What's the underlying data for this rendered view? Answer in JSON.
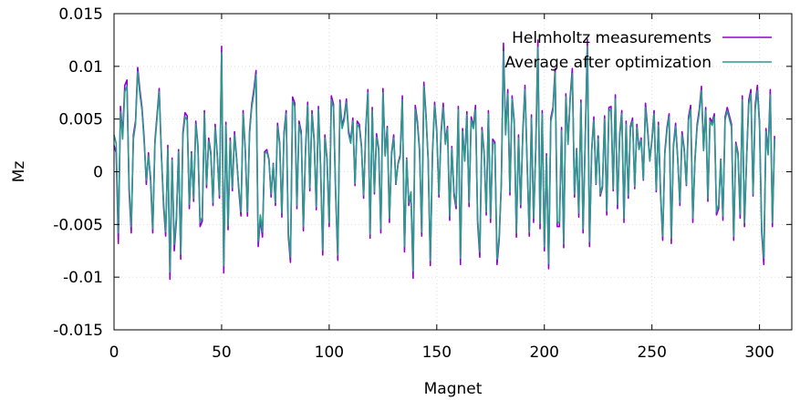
{
  "chart_data": {
    "type": "line",
    "title": "",
    "xlabel": "Magnet",
    "ylabel": "Mz",
    "xlim": [
      0,
      315
    ],
    "ylim": [
      -0.015,
      0.015
    ],
    "grid": true,
    "legend_position": "top-right",
    "x_ticks": [
      0,
      50,
      100,
      150,
      200,
      250,
      300
    ],
    "x_tick_labels": [
      "0",
      "50",
      "100",
      "150",
      "200",
      "250",
      "300"
    ],
    "y_ticks": [
      -0.015,
      -0.01,
      -0.005,
      0,
      0.005,
      0.01,
      0.015
    ],
    "y_tick_labels": [
      "-0.015",
      "-0.01",
      "-0.005",
      "0",
      "0.005",
      "0.01",
      "0.015"
    ],
    "series": [
      {
        "name": "Helmholtz measurements",
        "color": "#9400d3",
        "x_start": 0,
        "x_step": 1,
        "values": [
          0.0025,
          0.0018,
          -0.0068,
          0.0062,
          0.0035,
          0.0082,
          0.0087,
          -0.0018,
          -0.0058,
          0.0035,
          0.0048,
          0.0099,
          0.0078,
          0.0061,
          0.0032,
          -0.0012,
          0.0018,
          -0.0009,
          -0.0058,
          0.0029,
          0.0054,
          0.0079,
          0.0018,
          -0.0032,
          -0.0061,
          0.0025,
          -0.0102,
          0.0013,
          -0.0075,
          -0.0046,
          0.0021,
          -0.0083,
          0.0037,
          0.0056,
          0.0053,
          -0.0035,
          0.0019,
          -0.0028,
          0.0048,
          0.0025,
          -0.0052,
          -0.0047,
          0.0058,
          -0.0015,
          0.0032,
          0.0018,
          -0.0032,
          0.0045,
          0.0016,
          -0.0025,
          0.0119,
          -0.0096,
          0.0047,
          -0.0055,
          0.0032,
          -0.0018,
          0.0038,
          0.0012,
          -0.0018,
          -0.0042,
          0.0058,
          0.0021,
          -0.0042,
          0.0039,
          0.0064,
          0.0078,
          0.0096,
          -0.0071,
          -0.0045,
          -0.0062,
          0.0019,
          0.0021,
          0.0012,
          -0.0024,
          0.0008,
          -0.0032,
          0.0046,
          0.0027,
          -0.0043,
          0.0037,
          0.0058,
          -0.0061,
          -0.0086,
          0.0071,
          0.0065,
          -0.0035,
          0.0048,
          0.0038,
          -0.0056,
          0.0021,
          0.0066,
          -0.0018,
          0.0058,
          0.0031,
          -0.0036,
          0.0062,
          0.0005,
          -0.0079,
          0.0035,
          0.0012,
          -0.0052,
          0.0072,
          0.0064,
          -0.0021,
          -0.0084,
          0.0068,
          0.0043,
          0.0052,
          0.0069,
          0.0039,
          0.0029,
          0.0051,
          -0.0013,
          0.0048,
          0.0045,
          0.0025,
          -0.0025,
          0.0041,
          0.0078,
          -0.0063,
          0.0061,
          -0.0021,
          0.0036,
          0.0022,
          -0.0058,
          0.0079,
          0.0016,
          0.0043,
          -0.0048,
          0.0018,
          0.0035,
          -0.0012,
          0.0008,
          0.0016,
          0.0072,
          -0.0076,
          0.0013,
          -0.0032,
          -0.0021,
          -0.0101,
          0.0063,
          0.0048,
          0.0021,
          -0.0061,
          0.0085,
          0.0054,
          0.0012,
          -0.0089,
          0.0018,
          0.0066,
          0.0039,
          -0.0024,
          0.0038,
          0.0065,
          0.0028,
          0.0043,
          -0.0046,
          0.0024,
          -0.0022,
          -0.0035,
          0.0062,
          -0.0088,
          0.0041,
          0.0011,
          0.0057,
          -0.0033,
          0.0052,
          0.0043,
          0.0063,
          -0.0049,
          -0.0081,
          0.0042,
          0.0019,
          -0.0041,
          0.0058,
          -0.0048,
          0.0031,
          0.0028,
          -0.0088,
          -0.0065,
          -0.0012,
          0.0122,
          0.0038,
          0.0078,
          -0.0022,
          0.0072,
          0.0048,
          -0.0062,
          0.0035,
          -0.0034,
          0.0039,
          0.0082,
          0.0008,
          -0.0061,
          0.0054,
          -0.0048,
          0.0022,
          0.0125,
          -0.0054,
          0.0058,
          -0.0075,
          0.0017,
          -0.0092,
          0.0051,
          0.0061,
          0.0098,
          -0.0052,
          -0.0052,
          0.0042,
          -0.0072,
          0.0074,
          0.0028,
          0.0071,
          0.0098,
          -0.0024,
          0.0022,
          -0.0043,
          0.0068,
          -0.0058,
          0.0032,
          0.0126,
          -0.0071,
          0.0021,
          0.0052,
          -0.0012,
          0.0034,
          -0.0023,
          -0.0015,
          0.0053,
          -0.0041,
          0.0061,
          0.0062,
          -0.0018,
          0.0073,
          -0.0035,
          0.0035,
          0.0058,
          -0.0048,
          0.0048,
          -0.0025,
          0.0043,
          0.0051,
          -0.0016,
          0.0045,
          0.0022,
          0.0032,
          -0.0008,
          0.0065,
          0.0041,
          0.0011,
          0.0031,
          0.0058,
          -0.0019,
          0.0047,
          -0.0021,
          -0.0065,
          0.0019,
          0.0042,
          0.0055,
          -0.0068,
          0.0025,
          0.0046,
          0.0012,
          -0.0032,
          0.0038,
          0.0022,
          -0.0013,
          0.0052,
          0.0063,
          -0.0048,
          0.0012,
          0.0045,
          0.0059,
          0.0081,
          0.0022,
          0.0061,
          -0.0028,
          0.0051,
          0.0047,
          0.0055,
          -0.0041,
          -0.0035,
          0.0012,
          -0.0046,
          0.0052,
          0.0061,
          0.0053,
          0.0045,
          -0.0065,
          0.0028,
          0.0018,
          -0.0044,
          0.0072,
          -0.0052,
          0.0013,
          0.0068,
          0.0078,
          -0.0023,
          0.0063,
          0.0082,
          0.0047,
          -0.0057,
          -0.0088,
          0.0041,
          0.0018,
          0.0078,
          -0.0052,
          0.0034
        ]
      },
      {
        "name": "Average after optimization",
        "color": "#2b9a8c",
        "x_start": 0,
        "x_step": 1,
        "values": [
          0.0035,
          0.0027,
          -0.0058,
          0.0057,
          0.0031,
          0.0076,
          0.0081,
          -0.0013,
          -0.0052,
          0.0031,
          0.0045,
          0.0095,
          0.0074,
          0.0058,
          0.0028,
          -0.0008,
          0.0015,
          -0.0005,
          -0.0054,
          0.0026,
          0.0051,
          0.0076,
          0.0016,
          -0.0028,
          -0.0057,
          0.0022,
          -0.0095,
          0.0011,
          -0.0069,
          -0.0042,
          0.0019,
          -0.0078,
          0.0034,
          0.0052,
          0.0049,
          -0.0031,
          0.0017,
          -0.0025,
          0.0045,
          0.0023,
          -0.0048,
          -0.0043,
          0.0055,
          -0.0012,
          0.0029,
          0.0016,
          -0.0029,
          0.0042,
          0.0014,
          -0.0022,
          0.0113,
          -0.0089,
          0.0044,
          -0.0051,
          0.0029,
          -0.0015,
          0.0035,
          0.0011,
          -0.0015,
          -0.0038,
          0.0055,
          0.0019,
          -0.0038,
          0.0036,
          0.0061,
          0.0074,
          0.0092,
          -0.0066,
          -0.0041,
          -0.0057,
          0.0017,
          0.0019,
          0.0011,
          -0.0021,
          0.0007,
          -0.0029,
          0.0043,
          0.0025,
          -0.0039,
          0.0034,
          0.0055,
          -0.0057,
          -0.0081,
          0.0067,
          0.0062,
          -0.0032,
          0.0045,
          0.0035,
          -0.0052,
          0.0019,
          0.0063,
          -0.0015,
          0.0055,
          0.0029,
          -0.0033,
          0.0059,
          0.0004,
          -0.0074,
          0.0032,
          0.0011,
          -0.0048,
          0.0068,
          0.0061,
          -0.0019,
          -0.0079,
          0.0065,
          0.0041,
          0.0049,
          0.0066,
          0.0036,
          0.0027,
          0.0048,
          -0.0011,
          0.0045,
          0.0042,
          0.0023,
          -0.0022,
          0.0038,
          0.0075,
          -0.0059,
          0.0058,
          -0.0019,
          0.0033,
          0.0021,
          -0.0054,
          0.0075,
          0.0015,
          0.0041,
          -0.0044,
          0.0016,
          0.0032,
          -0.0011,
          0.0007,
          0.0014,
          0.0068,
          -0.0071,
          0.0012,
          -0.0029,
          -0.0019,
          -0.0094,
          0.0059,
          0.0045,
          0.0019,
          -0.0057,
          0.0081,
          0.0051,
          0.0011,
          -0.0084,
          0.0016,
          0.0063,
          0.0036,
          -0.0021,
          0.0035,
          0.0061,
          0.0026,
          0.0041,
          -0.0042,
          0.0022,
          -0.0019,
          -0.0032,
          0.0059,
          -0.0082,
          0.0038,
          0.001,
          0.0054,
          -0.0029,
          0.0049,
          0.0041,
          0.0059,
          -0.0045,
          -0.0076,
          0.0039,
          0.0017,
          -0.0038,
          0.0055,
          -0.0044,
          0.0028,
          0.0026,
          -0.0083,
          -0.0061,
          -0.0011,
          0.0114,
          0.0035,
          0.0074,
          -0.0019,
          0.0069,
          0.0045,
          -0.0058,
          0.0032,
          -0.0031,
          0.0036,
          0.0078,
          0.0007,
          -0.0057,
          0.0051,
          -0.0044,
          0.002,
          0.0118,
          -0.0049,
          0.0055,
          -0.0071,
          0.0015,
          -0.0087,
          0.0048,
          0.0058,
          0.0094,
          -0.0048,
          -0.0048,
          0.0039,
          -0.0068,
          0.0071,
          0.0026,
          0.0068,
          0.0093,
          -0.0021,
          0.0021,
          -0.0039,
          0.0065,
          -0.0054,
          0.003,
          0.0119,
          -0.0066,
          0.0019,
          0.0049,
          -0.0011,
          0.0031,
          -0.0021,
          -0.0013,
          0.005,
          -0.0037,
          0.0058,
          0.0059,
          -0.0016,
          0.0069,
          -0.0031,
          0.0033,
          0.0055,
          -0.0044,
          0.0045,
          -0.0022,
          0.0041,
          0.0048,
          -0.0014,
          0.0042,
          0.0021,
          0.003,
          -0.0007,
          0.0061,
          0.0038,
          0.001,
          0.0029,
          0.0055,
          -0.0017,
          0.0044,
          -0.0019,
          -0.0061,
          0.0017,
          0.0039,
          0.0052,
          -0.0063,
          0.0023,
          0.0043,
          0.0011,
          -0.0029,
          0.0035,
          0.002,
          -0.0012,
          0.0049,
          0.0059,
          -0.0044,
          0.0011,
          0.0042,
          0.0056,
          0.0077,
          0.002,
          0.0058,
          -0.0025,
          0.0048,
          0.0044,
          0.0052,
          -0.0038,
          -0.0031,
          0.0011,
          -0.0042,
          0.0049,
          0.0058,
          0.005,
          0.0042,
          -0.0061,
          0.0026,
          0.0016,
          -0.004,
          0.0068,
          -0.0048,
          0.0012,
          0.0064,
          0.0074,
          -0.0021,
          0.0059,
          0.0077,
          0.0044,
          -0.0053,
          -0.0082,
          0.0038,
          0.0016,
          0.0073,
          -0.0048,
          0.0031
        ]
      }
    ]
  }
}
